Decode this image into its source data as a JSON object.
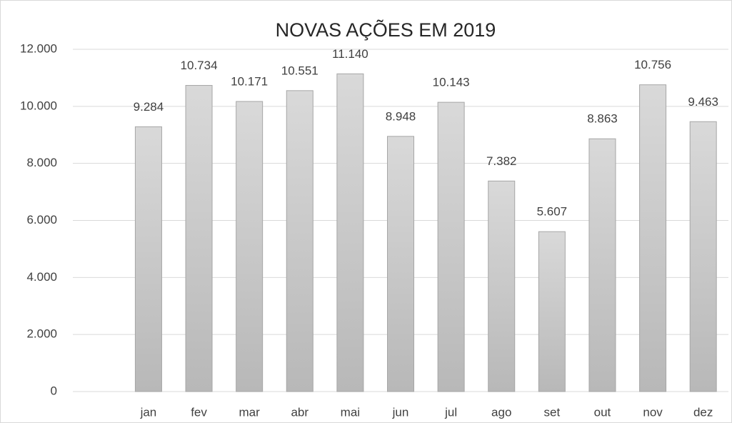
{
  "chart_data": {
    "type": "bar",
    "title": "NOVAS AÇÕES EM 2019",
    "categories": [
      null,
      "jan",
      "fev",
      "mar",
      "abr",
      "mai",
      "jun",
      "jul",
      "ago",
      "set",
      "out",
      "nov",
      "dez"
    ],
    "values": [
      null,
      9284,
      10734,
      10171,
      10551,
      11140,
      8948,
      10143,
      7382,
      5607,
      8863,
      10756,
      9463
    ],
    "value_labels": [
      null,
      "9.284",
      "10.734",
      "10.171",
      "10.551",
      "11.140",
      "8.948",
      "10.143",
      "7.382",
      "5.607",
      "8.863",
      "10.756",
      "9.463"
    ],
    "color": "#c8c8c8",
    "ylim": [
      0,
      12000
    ],
    "yticks": [
      0,
      {
        "value": 2000,
        "label": "2.000"
      },
      {
        "value": 4000,
        "label": "4.000"
      },
      {
        "value": 6000,
        "label": "6.000"
      },
      {
        "value": 8000,
        "label": "8.000"
      },
      {
        "value": 10000,
        "label": "10.000"
      },
      {
        "value": 12000,
        "label": "12.000"
      }
    ],
    "grid": true
  }
}
